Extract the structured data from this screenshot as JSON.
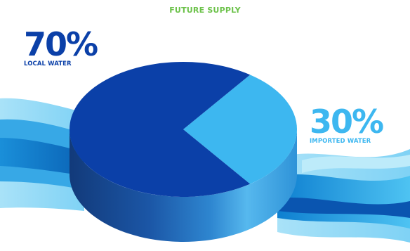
{
  "chart_data": {
    "type": "pie",
    "title": "FUTURE SUPPLY",
    "slices": [
      {
        "percent_label": "70%",
        "label": "LOCAL WATER",
        "value": 70,
        "color": "#0B40A8"
      },
      {
        "percent_label": "30%",
        "label": "IMPORTED WATER",
        "value": 30,
        "color": "#3DB7F0"
      }
    ],
    "legend": "none",
    "title_color": "#6CC24A"
  },
  "colors": {
    "local": "#0B40A8",
    "imported": "#3DB7F0",
    "wave_light": "#9FDDF6",
    "wave_mid": "#3AAAE6",
    "wave_dark": "#0F76C4"
  }
}
